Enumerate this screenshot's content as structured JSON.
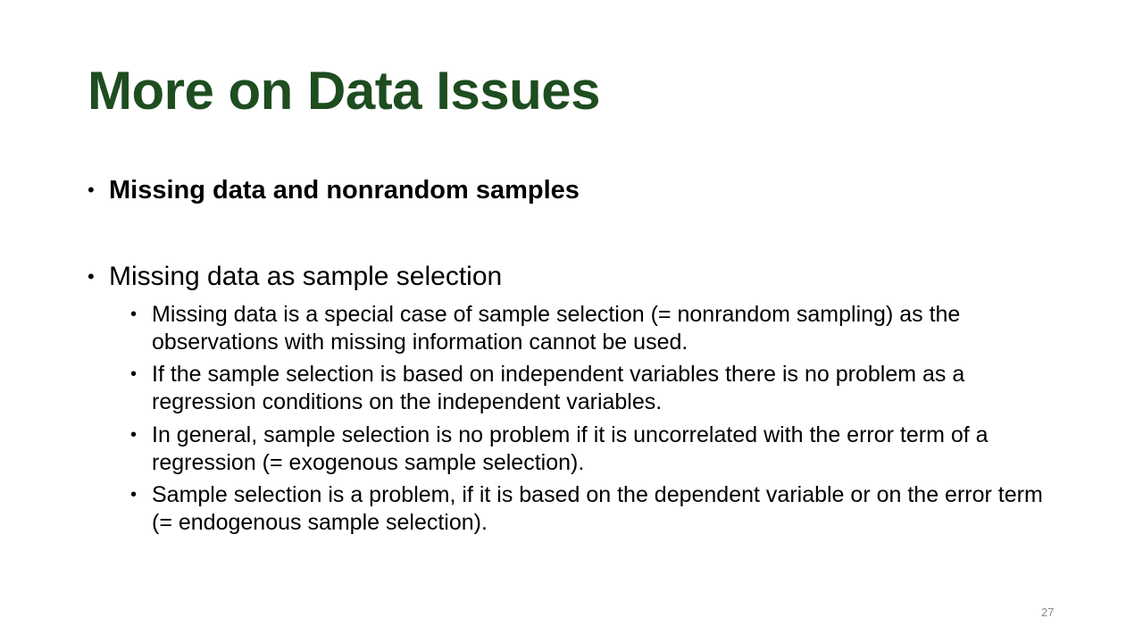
{
  "slide": {
    "title": "More on Data Issues",
    "bullets": [
      {
        "text": "Missing data and nonrandom samples"
      },
      {
        "text": "Missing data as sample selection",
        "sub": [
          "Missing data is a special case of sample selection (= nonrandom sampling) as the observations with missing information cannot be used.",
          "If the sample selection is based on independent variables there is no problem as a regression conditions on the independent variables.",
          "In general, sample selection is no problem if it is uncorrelated with the error term of a regression (= exogenous sample selection).",
          "Sample selection is a problem, if it is based on the dependent variable or on the error term (= endogenous sample selection)."
        ]
      }
    ],
    "bullet_char": "•",
    "page_number": "27",
    "colors": {
      "title": "#1e4d20",
      "text": "#000000",
      "page_number": "#8c8c8c",
      "background": "#ffffff"
    }
  }
}
